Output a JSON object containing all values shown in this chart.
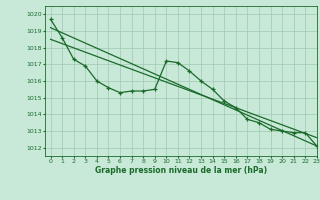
{
  "title": "Graphe pression niveau de la mer (hPa)",
  "xlim": [
    -0.5,
    23
  ],
  "ylim": [
    1011.5,
    1020.5
  ],
  "yticks": [
    1012,
    1013,
    1014,
    1015,
    1016,
    1017,
    1018,
    1019,
    1020
  ],
  "xticks": [
    0,
    1,
    2,
    3,
    4,
    5,
    6,
    7,
    8,
    9,
    10,
    11,
    12,
    13,
    14,
    15,
    16,
    17,
    18,
    19,
    20,
    21,
    22,
    23
  ],
  "bg_color": "#c8e8d8",
  "grid_color": "#a0c8b0",
  "line_color": "#1a6b2a",
  "line1_x": [
    0,
    1,
    2,
    3,
    4,
    5,
    6,
    7,
    8,
    9,
    10,
    11,
    12,
    13,
    14,
    15,
    16,
    17,
    18,
    19,
    20,
    21,
    22,
    23
  ],
  "line1_y": [
    1019.7,
    1018.6,
    1017.3,
    1016.9,
    1016.0,
    1015.6,
    1015.3,
    1015.4,
    1015.4,
    1015.5,
    1017.2,
    1017.1,
    1016.6,
    1016.0,
    1015.5,
    1014.8,
    1014.4,
    1013.7,
    1013.5,
    1013.1,
    1013.0,
    1012.9,
    1012.9,
    1012.1
  ],
  "line2_x": [
    0,
    23
  ],
  "line2_y": [
    1019.2,
    1012.1
  ],
  "trend_x": [
    0,
    23
  ],
  "trend_y": [
    1018.5,
    1012.6
  ]
}
